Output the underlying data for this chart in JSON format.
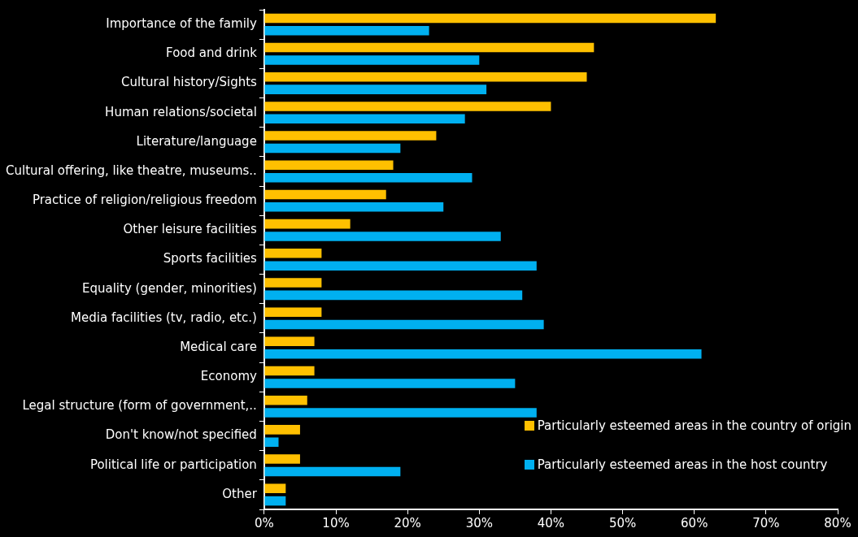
{
  "chart_data": {
    "type": "bar",
    "orientation": "horizontal",
    "categories": [
      "Importance of the family",
      "Food and drink",
      "Cultural history/Sights",
      "Human relations/societal",
      "Literature/language",
      "Cultural offering, like theatre, museums..",
      "Practice of religion/religious freedom",
      "Other leisure facilities",
      "Sports facilities",
      "Equality (gender, minorities)",
      "Media facilities (tv, radio, etc.)",
      "Medical care",
      "Economy",
      "Legal structure (form of government,..",
      "Don't know/not specified",
      "Political life or participation",
      "Other"
    ],
    "series": [
      {
        "name": "Particularly esteemed areas in the country of origin",
        "color": "#ffc000",
        "values": [
          63,
          46,
          45,
          40,
          24,
          18,
          17,
          12,
          8,
          8,
          8,
          7,
          7,
          6,
          5,
          5,
          3
        ]
      },
      {
        "name": "Particularly esteemed areas in the host country",
        "color": "#00b0f0",
        "values": [
          23,
          30,
          31,
          28,
          19,
          29,
          25,
          33,
          38,
          36,
          39,
          61,
          35,
          38,
          2,
          19,
          3
        ]
      }
    ],
    "xlim": [
      0,
      80
    ],
    "xticks": [
      {
        "value": 0,
        "label": "0%"
      },
      {
        "value": 10,
        "label": "10%"
      },
      {
        "value": 20,
        "label": "20%"
      },
      {
        "value": 30,
        "label": "30%"
      },
      {
        "value": 40,
        "label": "40%"
      },
      {
        "value": 50,
        "label": "50%"
      },
      {
        "value": 60,
        "label": "60%"
      },
      {
        "value": 70,
        "label": "70%"
      },
      {
        "value": 80,
        "label": "80%"
      }
    ],
    "grid": false,
    "legend": "bottom right"
  }
}
